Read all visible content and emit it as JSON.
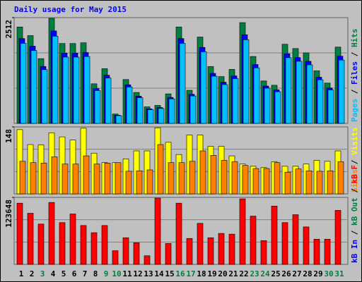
{
  "chart_data": [
    {
      "type": "bar",
      "title": "Daily usage for May 2015",
      "ylim": [
        0,
        2512
      ],
      "yticks": [
        2512
      ],
      "legend_separator": " / ",
      "series": [
        {
          "name": "Hits",
          "color": "#008040",
          "values": [
            2290,
            2085,
            1538,
            2495,
            1897,
            1897,
            1914,
            940,
            1299,
            222,
            1042,
            735,
            393,
            427,
            701,
            2290,
            786,
            2051,
            1350,
            1111,
            1282,
            2393,
            1589,
            1008,
            906,
            1880,
            1777,
            1675,
            1248,
            957,
            1812
          ]
        },
        {
          "name": "Files",
          "color": "#0000FF",
          "values": [
            2015,
            1835,
            1353,
            2196,
            1669,
            1669,
            1684,
            827,
            1143,
            195,
            917,
            647,
            346,
            376,
            617,
            2015,
            692,
            1805,
            1188,
            978,
            1128,
            2106,
            1398,
            887,
            797,
            1654,
            1564,
            1474,
            1098,
            842,
            1595
          ]
        },
        {
          "name": "Pages",
          "color": "#00C0FF",
          "values": [
            1901,
            1731,
            1277,
            2071,
            1575,
            1575,
            1589,
            780,
            1078,
            184,
            865,
            610,
            326,
            354,
            582,
            1901,
            652,
            1702,
            1121,
            922,
            1064,
            1986,
            1319,
            837,
            752,
            1560,
            1475,
            1390,
            1036,
            794,
            1504
          ]
        }
      ]
    },
    {
      "type": "bar",
      "ylim": [
        0,
        148
      ],
      "yticks": [
        148
      ],
      "legend_separator": " / ",
      "series": [
        {
          "name": "Visits",
          "color": "#FFFF00",
          "values": [
            142,
            109,
            108,
            135,
            126,
            119,
            145,
            90,
            69,
            69,
            77,
            95,
            95,
            146,
            114,
            87,
            130,
            130,
            105,
            105,
            84,
            66,
            61,
            58,
            71,
            61,
            61,
            66,
            74,
            72,
            95
          ]
        },
        {
          "name": "Sites",
          "color": "#FF8000",
          "values": [
            72,
            69,
            68,
            82,
            66,
            66,
            84,
            66,
            68,
            69,
            50,
            51,
            53,
            109,
            69,
            69,
            72,
            95,
            85,
            74,
            71,
            63,
            56,
            56,
            69,
            48,
            55,
            51,
            50,
            51,
            71
          ]
        }
      ]
    },
    {
      "type": "bar",
      "ylim": [
        0,
        123648
      ],
      "yticks": [
        123648
      ],
      "legend_separator": " / ",
      "categories": [
        "1",
        "2",
        "3",
        "4",
        "5",
        "6",
        "7",
        "8",
        "9",
        "10",
        "11",
        "12",
        "13",
        "14",
        "15",
        "16",
        "17",
        "18",
        "19",
        "20",
        "21",
        "22",
        "23",
        "24",
        "25",
        "26",
        "27",
        "28",
        "29",
        "30",
        "31"
      ],
      "category_colors": [
        "#000000",
        "#000000",
        "#008040",
        "#000000",
        "#000000",
        "#000000",
        "#000000",
        "#000000",
        "#008040",
        "#008040",
        "#000000",
        "#000000",
        "#000000",
        "#000000",
        "#000000",
        "#008040",
        "#008040",
        "#000000",
        "#000000",
        "#000000",
        "#000000",
        "#000000",
        "#008040",
        "#008040",
        "#000000",
        "#000000",
        "#000000",
        "#000000",
        "#000000",
        "#008040",
        "#008040"
      ],
      "inactive_series": [
        {
          "name": "kB Out",
          "color": "#008040"
        },
        {
          "name": "kB In",
          "color": "#0000FF"
        }
      ],
      "series": [
        {
          "name": "kB F",
          "color": "#FF0000",
          "values": [
            113008,
            94395,
            74452,
            114337,
            77111,
            93065,
            71793,
            58498,
            71793,
            25261,
            49192,
            39885,
            15954,
            122314,
            38556,
            113008,
            47862,
            75782,
            49192,
            57169,
            55839,
            120985,
            89077,
            43874,
            107690,
            77111,
            91736,
            69134,
            46533,
            46533,
            99713
          ]
        }
      ]
    }
  ]
}
